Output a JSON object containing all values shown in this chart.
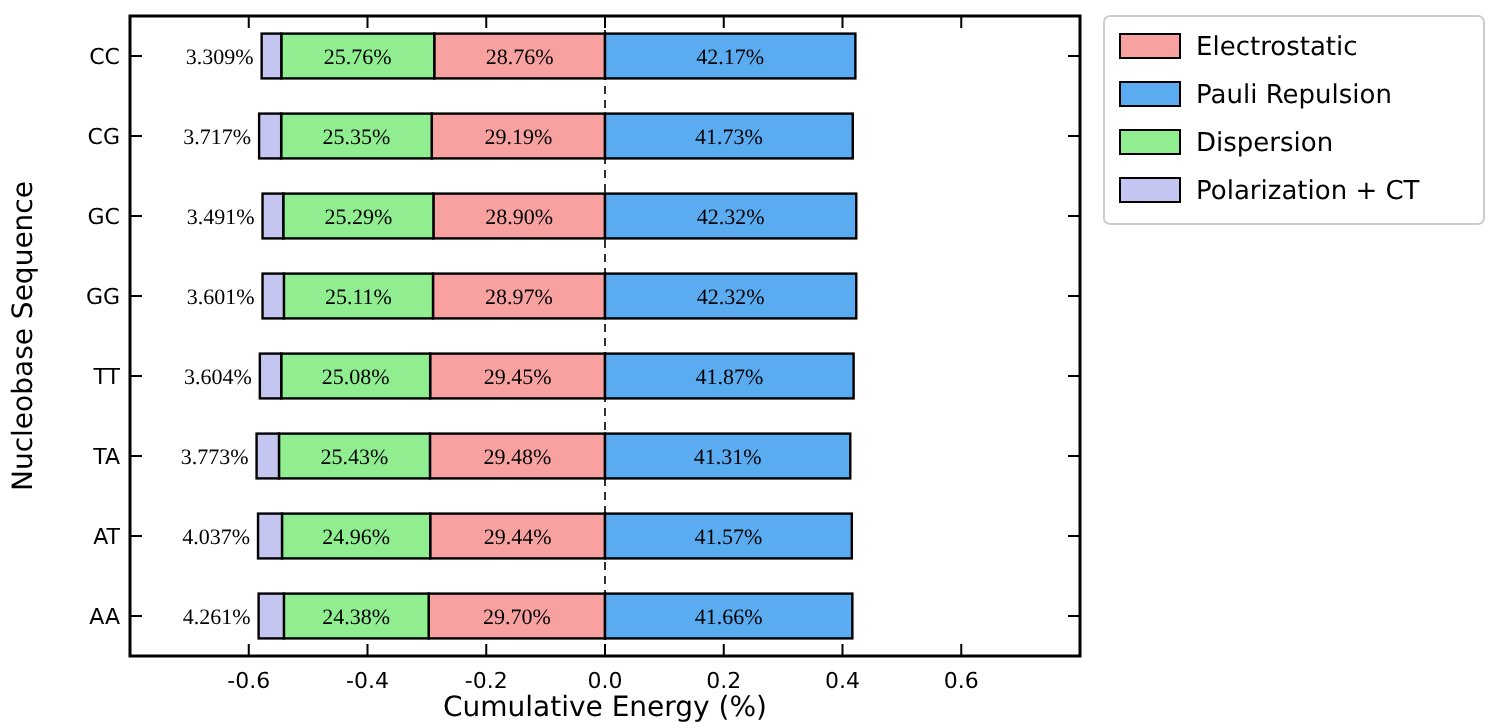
{
  "chart_data": {
    "type": "bar",
    "orientation": "horizontal",
    "xlabel": "Cumulative Energy (%)",
    "ylabel": "Nucleobase Sequence",
    "categories": [
      "CC",
      "CG",
      "GC",
      "GG",
      "TT",
      "TA",
      "AT",
      "AA"
    ],
    "xlim": [
      -0.8,
      0.8
    ],
    "xticks": [
      -0.6,
      -0.4,
      -0.2,
      {
        "value": 0,
        "label": "0.0"
      },
      0.2,
      0.4,
      0.6
    ],
    "legend": "top right",
    "ref_lines": [
      {
        "axis": "x",
        "value": 0,
        "line_style": "dashed",
        "color": "#000000"
      }
    ],
    "series": [
      {
        "name": "Electrostatic",
        "color": "#f7a1a1",
        "values": [
          0.2876,
          0.2919,
          0.289,
          0.2897,
          0.2945,
          0.2948,
          0.2944,
          0.297
        ],
        "base": [
          -0.2876,
          -0.2919,
          -0.289,
          -0.2897,
          -0.2945,
          -0.2948,
          -0.2944,
          -0.297
        ],
        "value_labels": [
          "28.76%",
          "29.19%",
          "28.90%",
          "28.97%",
          "29.45%",
          "29.48%",
          "29.44%",
          "29.70%"
        ]
      },
      {
        "name": "Pauli Repulsion",
        "color": "#5aabf0",
        "values": [
          0.4217,
          0.4173,
          0.4232,
          0.4232,
          0.4187,
          0.4131,
          0.4157,
          0.4166
        ],
        "base": [
          0,
          0,
          0,
          0,
          0,
          0,
          0,
          0
        ],
        "value_labels": [
          "42.17%",
          "41.73%",
          "42.32%",
          "42.32%",
          "41.87%",
          "41.31%",
          "41.57%",
          "41.66%"
        ]
      },
      {
        "name": "Dispersion",
        "color": "#90ee90",
        "values": [
          0.2576,
          0.2535,
          0.2529,
          0.2511,
          0.2508,
          0.2543,
          0.2496,
          0.2438
        ],
        "base": [
          -0.5452,
          -0.5454,
          -0.5419,
          -0.5408,
          -0.5453,
          -0.5491,
          -0.544,
          -0.5408
        ],
        "value_labels": [
          "25.76%",
          "25.35%",
          "25.29%",
          "25.11%",
          "25.08%",
          "25.43%",
          "24.96%",
          "24.38%"
        ]
      },
      {
        "name": "Polarization + CT",
        "color": "#c5c5f2",
        "values": [
          0.03309,
          0.03717,
          0.03491,
          0.03601,
          0.03604,
          0.03773,
          0.04037,
          0.04261
        ],
        "base": [
          -0.57829,
          -0.58257,
          -0.57681,
          -0.57681,
          -0.58134,
          -0.58683,
          -0.58437,
          -0.58341
        ],
        "value_labels": [
          "3.309%",
          "3.717%",
          "3.491%",
          "3.601%",
          "3.604%",
          "3.773%",
          "4.037%",
          "4.261%"
        ]
      }
    ]
  }
}
